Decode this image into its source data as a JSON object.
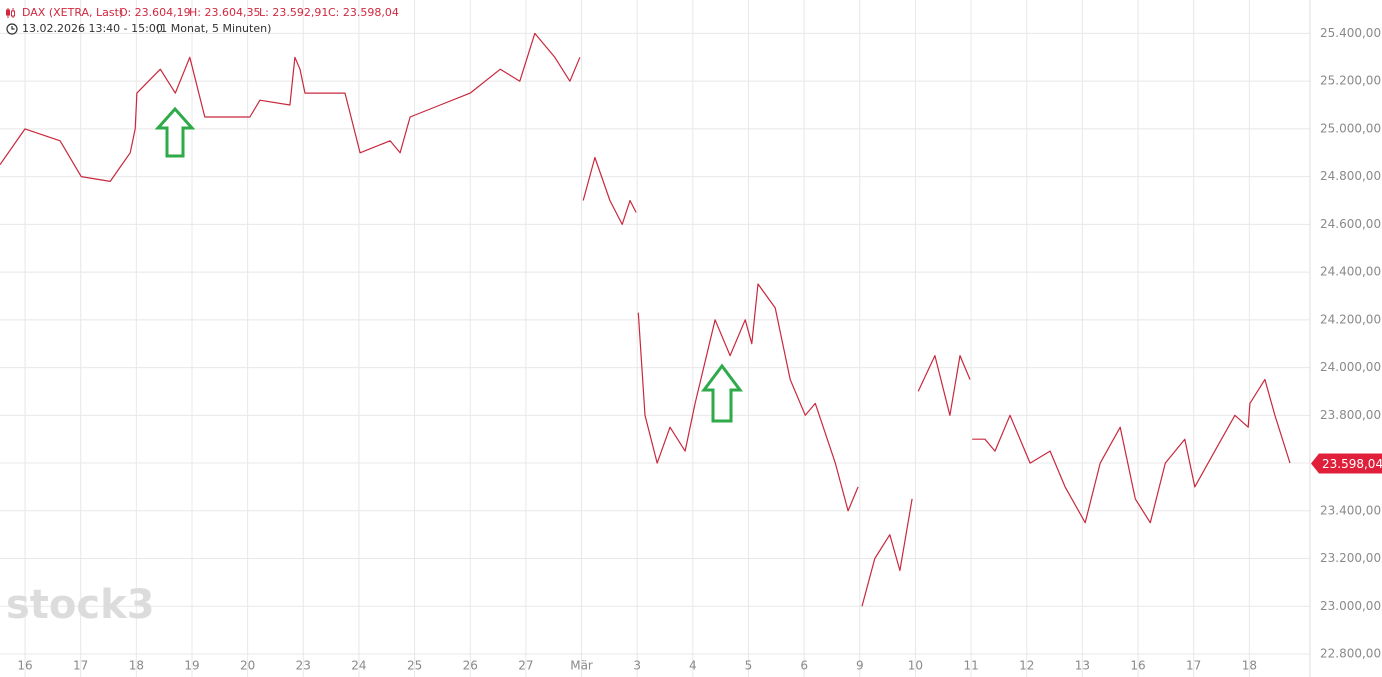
{
  "chart_data": {
    "type": "line",
    "title": "DAX (XETRA, Last)",
    "ohlc": [
      "O: 23.604,19",
      "H: 23.604,35",
      "L: 23.592,91",
      "C: 23.598,04"
    ],
    "subtitle": "13.02.2026 13:40 - 15:00",
    "period": "(1 Monat, 5 Minuten)",
    "watermark": "stock3",
    "xlim": [
      -0.45,
      23.09
    ],
    "xticks": [
      {
        "value": 0,
        "label": "16"
      },
      {
        "value": 1,
        "label": "17"
      },
      {
        "value": 2,
        "label": "18"
      },
      {
        "value": 3,
        "label": "19"
      },
      {
        "value": 4,
        "label": "20"
      },
      {
        "value": 5,
        "label": "23"
      },
      {
        "value": 6,
        "label": "24"
      },
      {
        "value": 7,
        "label": "25"
      },
      {
        "value": 8,
        "label": "26"
      },
      {
        "value": 9,
        "label": "27"
      },
      {
        "value": 10,
        "label": "Mär"
      },
      {
        "value": 11,
        "label": "3"
      },
      {
        "value": 12,
        "label": "4"
      },
      {
        "value": 13,
        "label": "5"
      },
      {
        "value": 14,
        "label": "6"
      },
      {
        "value": 15,
        "label": "9"
      },
      {
        "value": 16,
        "label": "10"
      },
      {
        "value": 17,
        "label": "11"
      },
      {
        "value": 18,
        "label": "12"
      },
      {
        "value": 19,
        "label": "13"
      },
      {
        "value": 20,
        "label": "16"
      },
      {
        "value": 21,
        "label": "17"
      },
      {
        "value": 22,
        "label": "18"
      }
    ],
    "ylim": [
      22800,
      25540
    ],
    "yticks": [
      {
        "value": 22800,
        "label": "22.800,00"
      },
      {
        "value": 23000,
        "label": "23.000,00"
      },
      {
        "value": 23200,
        "label": "23.200,00"
      },
      {
        "value": 23400,
        "label": "23.400,00"
      },
      {
        "value": 23600,
        "label": "23.600,00"
      },
      {
        "value": 23800,
        "label": "23.800,00"
      },
      {
        "value": 24000,
        "label": "24.000,00"
      },
      {
        "value": 24200,
        "label": "24.200,00"
      },
      {
        "value": 24400,
        "label": "24.400,00"
      },
      {
        "value": 24600,
        "label": "24.600,00"
      },
      {
        "value": 24800,
        "label": "24.800,00"
      },
      {
        "value": 25000,
        "label": "25.000,00"
      },
      {
        "value": 25200,
        "label": "25.200,00"
      },
      {
        "value": 25400,
        "label": "25.400,00"
      }
    ],
    "grid": true,
    "series": [
      {
        "name": "DAX",
        "color": "#c8283e",
        "x": [
          -0.45,
          0,
          0.63,
          1.01,
          1.53,
          1.89,
          1.98,
          2.01,
          2.43,
          2.7,
          2.96,
          3.23,
          3.68,
          4.04,
          4.22,
          4.76,
          4.85,
          4.94,
          5.03,
          5.3,
          5.75,
          6.02,
          6.56,
          6.74,
          6.92,
          7.46,
          8.0,
          8.54,
          8.89,
          9.16,
          9.52,
          9.79,
          9.97,
          null,
          10.03,
          10.24,
          10.51,
          10.73,
          10.87,
          10.98,
          null,
          11.02,
          11.14,
          11.36,
          11.59,
          11.86,
          12.04,
          12.4,
          12.67,
          12.94,
          13.06,
          13.17,
          13.48,
          13.75,
          14.02,
          14.2,
          14.56,
          14.79,
          14.97,
          null,
          15.04,
          15.27,
          15.54,
          15.72,
          15.94,
          null,
          16.05,
          16.35,
          16.62,
          16.8,
          16.98,
          null,
          17.02,
          17.25,
          17.43,
          17.7,
          18.06,
          18.42,
          18.69,
          19.05,
          19.32,
          19.68,
          19.95,
          20.22,
          20.49,
          20.84,
          21.02,
          21.38,
          21.74,
          21.98,
          22.01,
          22.28,
          22.46,
          22.73
        ],
        "values": [
          24850,
          25000,
          24950,
          24800,
          24780,
          24900,
          25000,
          25150,
          25250,
          25150,
          25300,
          25050,
          25050,
          25050,
          25120,
          25100,
          25300,
          25250,
          25150,
          25150,
          25150,
          24900,
          24950,
          24900,
          25050,
          25100,
          25150,
          25250,
          25200,
          25400,
          25300,
          25200,
          25300,
          null,
          24700,
          24880,
          24700,
          24600,
          24700,
          24650,
          null,
          24230,
          23800,
          23600,
          23750,
          23650,
          23850,
          24200,
          24050,
          24200,
          24100,
          24350,
          24250,
          23950,
          23800,
          23850,
          23600,
          23400,
          23500,
          null,
          23000,
          23200,
          23300,
          23150,
          23450,
          null,
          23900,
          24050,
          23800,
          24050,
          23950,
          null,
          23700,
          23700,
          23650,
          23800,
          23600,
          23650,
          23500,
          23350,
          23600,
          23750,
          23450,
          23350,
          23600,
          23700,
          23500,
          23650,
          23800,
          23750,
          23850,
          23950,
          23800,
          23600
        ]
      }
    ],
    "last_value": 23598.04,
    "last_label": "23.598,04",
    "last_color": "#e0203a"
  }
}
